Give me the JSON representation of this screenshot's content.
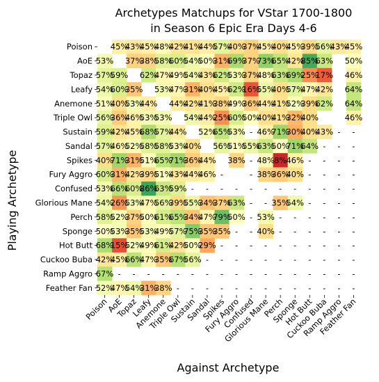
{
  "chart_data": {
    "type": "heatmap",
    "title": "Archetypes Matchups for VStar 1700-1800",
    "subtitle": "in Season 6 Epic Era Days 4-6",
    "xlabel": "Against Archetype",
    "ylabel": "Playing Archetype",
    "rows": [
      "Poison",
      "AoE",
      "Topaz",
      "Leafy",
      "Anemone",
      "Triple Owl",
      "Sustain",
      "Sandal",
      "Spikes",
      "Fury Aggro",
      "Confused",
      "Glorious Mane",
      "Perch",
      "Sponge",
      "Hot Butt",
      "Cuckoo Buba",
      "Ramp Aggro",
      "Feather Fan"
    ],
    "columns": [
      "Poison",
      "AoE",
      "Topaz",
      "Leafy",
      "Anemone",
      "Triple Owl",
      "Sustain",
      "Sandal",
      "Spikes",
      "Fury Aggro",
      "Confused",
      "Glorious Mane",
      "Perch",
      "Sponge",
      "Hot Butt",
      "Cuckoo Buba",
      "Ramp Aggro",
      "Feather Fan"
    ],
    "values": [
      [
        null,
        45,
        43,
        45,
        48,
        42,
        41,
        44,
        57,
        40,
        37,
        45,
        40,
        45,
        39,
        56,
        43,
        45
      ],
      [
        53,
        null,
        37,
        38,
        58,
        60,
        54,
        50,
        31,
        69,
        37,
        73,
        65,
        42,
        85,
        63,
        null,
        50
      ],
      [
        57,
        59,
        null,
        62,
        47,
        49,
        54,
        43,
        62,
        53,
        37,
        48,
        63,
        69,
        25,
        17,
        null,
        46
      ],
      [
        54,
        60,
        35,
        null,
        53,
        47,
        31,
        40,
        45,
        62,
        16,
        55,
        40,
        57,
        47,
        42,
        null,
        64
      ],
      [
        51,
        40,
        53,
        44,
        null,
        44,
        42,
        41,
        38,
        49,
        36,
        44,
        41,
        52,
        39,
        62,
        null,
        64
      ],
      [
        56,
        36,
        46,
        53,
        53,
        null,
        54,
        44,
        25,
        60,
        50,
        40,
        41,
        32,
        40,
        null,
        null,
        46
      ],
      [
        59,
        42,
        45,
        68,
        57,
        44,
        null,
        52,
        65,
        53,
        null,
        46,
        71,
        30,
        40,
        43,
        null,
        null
      ],
      [
        57,
        46,
        52,
        58,
        58,
        53,
        40,
        null,
        56,
        51,
        55,
        63,
        50,
        71,
        64,
        null,
        null,
        null
      ],
      [
        40,
        71,
        31,
        51,
        65,
        71,
        36,
        44,
        null,
        38,
        null,
        48,
        8,
        46,
        null,
        null,
        null,
        null
      ],
      [
        60,
        31,
        42,
        39,
        51,
        43,
        44,
        46,
        null,
        null,
        null,
        38,
        36,
        40,
        null,
        null,
        null,
        null
      ],
      [
        53,
        66,
        60,
        86,
        63,
        59,
        null,
        null,
        null,
        null,
        null,
        null,
        null,
        null,
        null,
        null,
        null,
        null
      ],
      [
        54,
        26,
        53,
        47,
        56,
        39,
        55,
        34,
        37,
        63,
        null,
        null,
        35,
        54,
        null,
        null,
        null,
        null
      ],
      [
        58,
        52,
        37,
        50,
        61,
        65,
        34,
        47,
        79,
        50,
        null,
        53,
        null,
        null,
        null,
        null,
        null,
        null
      ],
      [
        50,
        53,
        35,
        53,
        49,
        57,
        75,
        35,
        35,
        null,
        null,
        40,
        null,
        null,
        null,
        null,
        null,
        null
      ],
      [
        68,
        15,
        52,
        49,
        61,
        42,
        50,
        29,
        null,
        null,
        null,
        null,
        null,
        null,
        null,
        null,
        null,
        null
      ],
      [
        42,
        45,
        66,
        47,
        35,
        67,
        56,
        null,
        null,
        null,
        null,
        null,
        null,
        null,
        null,
        null,
        null,
        null
      ],
      [
        67,
        null,
        null,
        null,
        null,
        null,
        null,
        null,
        null,
        null,
        null,
        null,
        null,
        null,
        null,
        null,
        null,
        null
      ],
      [
        52,
        47,
        54,
        31,
        38,
        null,
        null,
        null,
        null,
        null,
        null,
        null,
        null,
        null,
        null,
        null,
        null,
        null
      ]
    ],
    "blank_cells": [
      [
        0,
        0
      ],
      [
        1,
        1
      ],
      [
        2,
        2
      ],
      [
        3,
        3
      ],
      [
        4,
        4
      ],
      [
        5,
        5
      ],
      [
        6,
        6
      ],
      [
        7,
        7
      ],
      [
        8,
        8
      ],
      [
        9,
        9
      ],
      [
        1,
        16
      ],
      [
        2,
        16
      ],
      [
        3,
        16
      ],
      [
        4,
        16
      ],
      [
        5,
        15
      ],
      [
        5,
        16
      ]
    ],
    "missing_marker": "-",
    "value_suffix": "%",
    "colormap": "RdYlGn",
    "vrange": [
      0,
      100
    ]
  }
}
